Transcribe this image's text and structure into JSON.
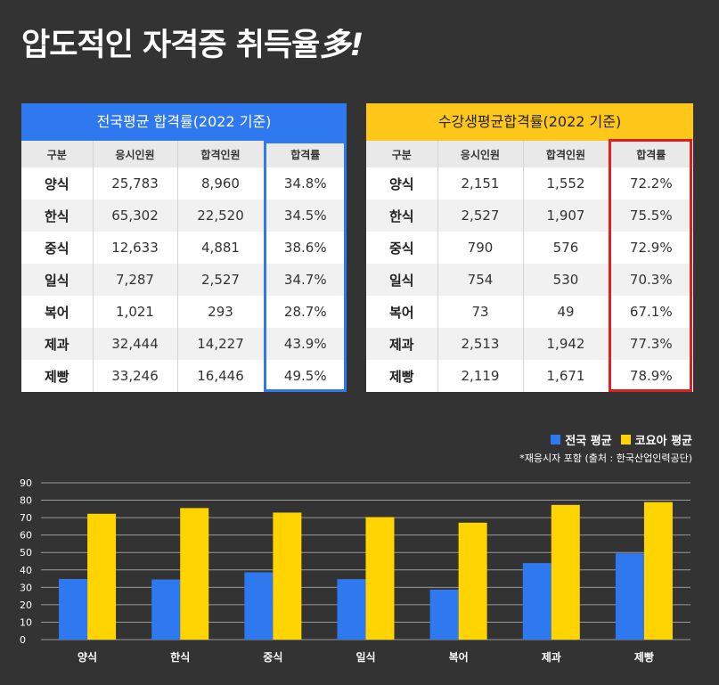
{
  "headline": {
    "main": "압도적인 자격증 취득율",
    "emph": "多!"
  },
  "colors": {
    "national": "#2f79f0",
    "koyoa": "#ffd400",
    "highlight_red": "#e02020"
  },
  "table_national": {
    "title": "전국평균 합격률(2022 기준)",
    "headers": [
      "구분",
      "응시인원",
      "합격인원",
      "합격률"
    ],
    "rows": [
      [
        "양식",
        "25,783",
        "8,960",
        "34.8%"
      ],
      [
        "한식",
        "65,302",
        "22,520",
        "34.5%"
      ],
      [
        "중식",
        "12,633",
        "4,881",
        "38.6%"
      ],
      [
        "일식",
        "7,287",
        "2,527",
        "34.7%"
      ],
      [
        "복어",
        "1,021",
        "293",
        "28.7%"
      ],
      [
        "제과",
        "32,444",
        "14,227",
        "43.9%"
      ],
      [
        "제빵",
        "33,246",
        "16,446",
        "49.5%"
      ]
    ]
  },
  "table_koyoa": {
    "title": "수강생평균합격률(2022 기준)",
    "headers": [
      "구분",
      "응시인원",
      "합격인원",
      "합격률"
    ],
    "rows": [
      [
        "양식",
        "2,151",
        "1,552",
        "72.2%"
      ],
      [
        "한식",
        "2,527",
        "1,907",
        "75.5%"
      ],
      [
        "중식",
        "790",
        "576",
        "72.9%"
      ],
      [
        "일식",
        "754",
        "530",
        "70.3%"
      ],
      [
        "복어",
        "73",
        "49",
        "67.1%"
      ],
      [
        "제과",
        "2,513",
        "1,942",
        "77.3%"
      ],
      [
        "제빵",
        "2,119",
        "1,671",
        "78.9%"
      ]
    ]
  },
  "legend": {
    "national": "전국 평균",
    "koyoa": "코요아 평균"
  },
  "note": "*재응시자 포함 (출처 : 한국산업인력공단)",
  "chart_data": {
    "type": "bar",
    "categories": [
      "양식",
      "한식",
      "중식",
      "일식",
      "복어",
      "제과",
      "제빵"
    ],
    "series": [
      {
        "name": "전국 평균",
        "values": [
          34.8,
          34.5,
          38.6,
          34.7,
          28.7,
          43.9,
          49.5
        ]
      },
      {
        "name": "코요아 평균",
        "values": [
          72.2,
          75.5,
          72.9,
          70.3,
          67.1,
          77.3,
          78.9
        ]
      }
    ],
    "yticks": [
      0,
      10,
      20,
      30,
      40,
      50,
      60,
      70,
      80,
      90
    ],
    "ylim": [
      0,
      90
    ],
    "grid": true,
    "legend_position": "top-right"
  }
}
